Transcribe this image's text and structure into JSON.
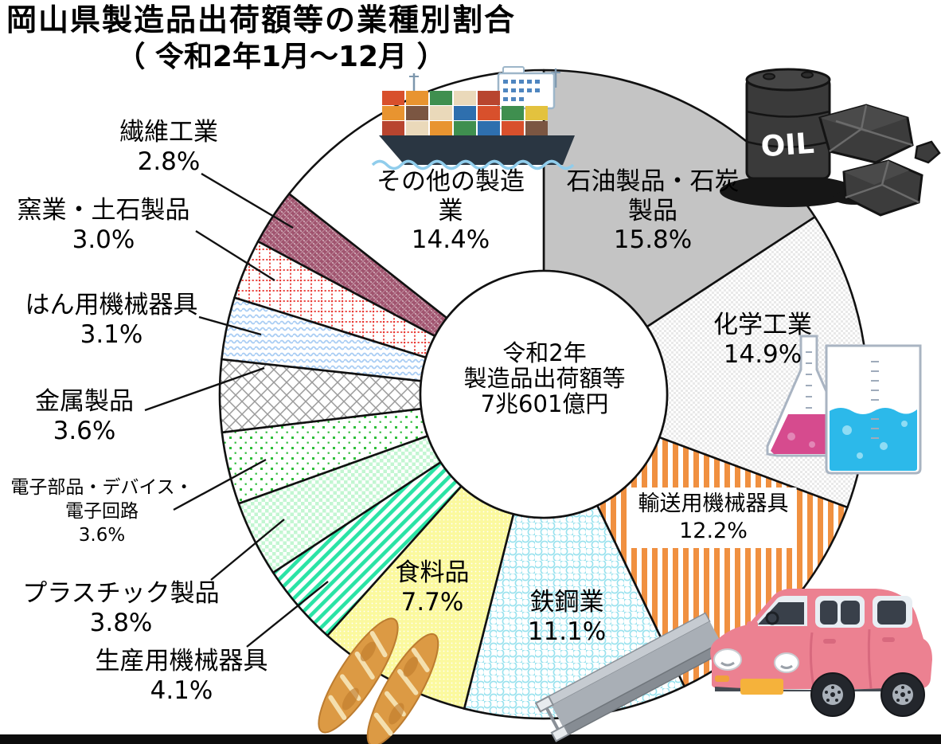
{
  "page": {
    "title_line1": "岡山県製造品出荷額等の業種別割合",
    "title_line2": "（ 令和2年1月～12月 ）"
  },
  "center_label": {
    "line1": "令和2年",
    "line2": "製造品出荷額等",
    "line3": "7兆601億円"
  },
  "chart_data": {
    "type": "pie",
    "title": "岡山県製造品出荷額等の業種別割合（令和2年1月～12月）",
    "period": "令和2年1月～12月",
    "center_total": "令和2年 製造品出荷額等 7兆601億円",
    "unit": "%",
    "start_angle": "12-oclock",
    "direction": "clockwise",
    "donut": true,
    "slices": [
      {
        "name": "石油製品・石炭製品",
        "value": 15.8,
        "pct_label": "15.8%",
        "label_lines": [
          "石油製品・石炭",
          "製品"
        ],
        "label_placement": "inside",
        "pattern": "solid",
        "color": "#c4c4c4"
      },
      {
        "name": "化学工業",
        "value": 14.9,
        "pct_label": "14.9%",
        "label_lines": [
          "化学工業"
        ],
        "label_placement": "inside",
        "pattern": "checker-fine",
        "color": "#e9e9e9"
      },
      {
        "name": "輸送用機械器具",
        "value": 12.2,
        "pct_label": "12.2%",
        "label_lines": [
          "輸送用機械器具"
        ],
        "label_placement": "inside-boxed",
        "pattern": "stripes-vertical",
        "color": "#f09040"
      },
      {
        "name": "鉄鋼業",
        "value": 11.1,
        "pct_label": "11.1%",
        "label_lines": [
          "鉄鋼業"
        ],
        "label_placement": "inside",
        "pattern": "scales",
        "color": "#99e2ee"
      },
      {
        "name": "食料品",
        "value": 7.7,
        "pct_label": "7.7%",
        "label_lines": [
          "食料品"
        ],
        "label_placement": "inside",
        "pattern": "dots-on-color",
        "color": "#fbf99e"
      },
      {
        "name": "生産用機械器具",
        "value": 4.1,
        "pct_label": "4.1%",
        "label_lines": [
          "生産用機械器具"
        ],
        "label_placement": "outside",
        "pattern": "stripes-diagonal",
        "color": "#2ae3a5"
      },
      {
        "name": "プラスチック製品",
        "value": 3.8,
        "pct_label": "3.8%",
        "label_lines": [
          "プラスチック製品"
        ],
        "label_placement": "outside",
        "pattern": "checker-light",
        "color": "#c3f6d2"
      },
      {
        "name": "電子部品・デバイス・電子回路",
        "value": 3.6,
        "pct_label": "3.6%",
        "label_lines": [
          "電子部品・デバイス・",
          "電子回路"
        ],
        "label_placement": "outside",
        "pattern": "dots-sparse",
        "color": "#2ebe3a"
      },
      {
        "name": "金属製品",
        "value": 3.6,
        "pct_label": "3.6%",
        "label_lines": [
          "金属製品"
        ],
        "label_placement": "outside",
        "pattern": "diamond-lattice",
        "color": "#9a9a9a"
      },
      {
        "name": "はん用機械器具",
        "value": 3.1,
        "pct_label": "3.1%",
        "label_lines": [
          "はん用機械器具"
        ],
        "label_placement": "outside",
        "pattern": "waves",
        "color": "#a9cdf4"
      },
      {
        "name": "窯業・土石製品",
        "value": 3.0,
        "pct_label": "3.0%",
        "label_lines": [
          "窯業・土石製品"
        ],
        "label_placement": "outside",
        "pattern": "dotted-grid",
        "color": "#e8302a"
      },
      {
        "name": "繊維工業",
        "value": 2.8,
        "pct_label": "2.8%",
        "label_lines": [
          "繊維工業"
        ],
        "label_placement": "outside",
        "pattern": "textile-dense",
        "color": "#a0546f"
      },
      {
        "name": "その他の製造業",
        "value": 14.4,
        "pct_label": "14.4%",
        "label_lines": [
          "その他の製造",
          "業"
        ],
        "label_placement": "inside",
        "pattern": "white",
        "color": "#ffffff"
      }
    ],
    "icons": [
      {
        "name": "container-ship-icon",
        "represents": "その他の製造業"
      },
      {
        "name": "oil-barrel-coal-icon",
        "represents": "石油製品・石炭製品"
      },
      {
        "name": "chemistry-flasks-icon",
        "represents": "化学工業"
      },
      {
        "name": "pink-car-icon",
        "represents": "輸送用機械器具"
      },
      {
        "name": "steel-beam-icon",
        "represents": "鉄鋼業"
      },
      {
        "name": "baguette-bread-icon",
        "represents": "食料品"
      }
    ]
  }
}
